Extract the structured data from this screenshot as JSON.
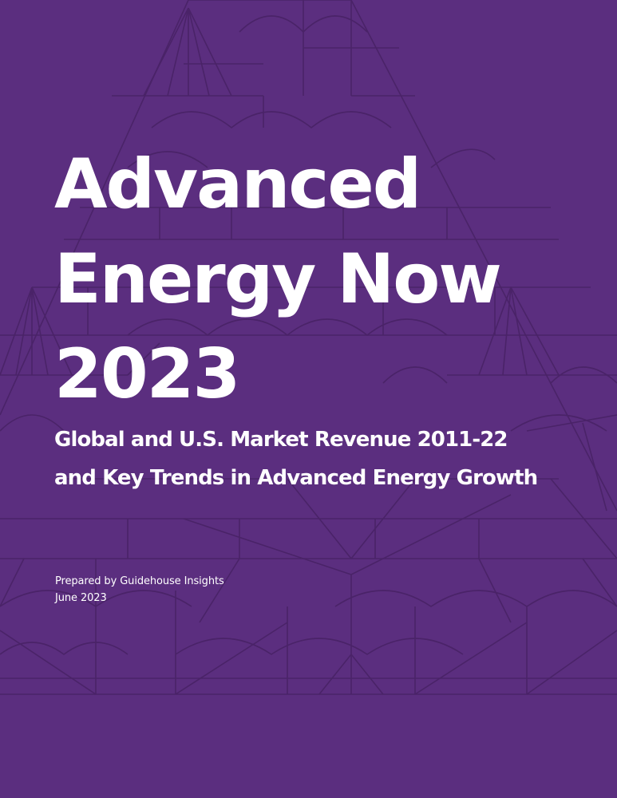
{
  "cover": {
    "title_lines": [
      "Advanced",
      "Energy Now",
      "2023"
    ],
    "subtitle_lines": [
      "Global and U.S.  Market Revenue 2011-22",
      "and Key Trends in Advanced Energy Growth"
    ],
    "prepared_by": "Prepared by Guidehouse Insights",
    "date": "June 2023"
  },
  "colors": {
    "background": "#5b2e7f",
    "pattern_lines": "#4a2368",
    "text": "#ffffff"
  }
}
